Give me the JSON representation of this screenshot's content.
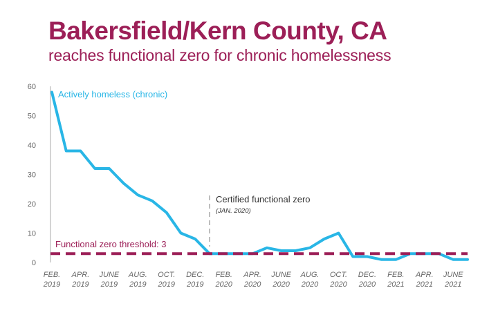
{
  "colors": {
    "accent": "#9c1f57",
    "series": "#29b6e6",
    "threshold": "#9c1f57",
    "axis": "#aaaaaa",
    "tick_text": "#666666",
    "annotation_line": "#aaaaaa"
  },
  "chart_data": {
    "type": "line",
    "title": "Bakersfield/Kern County, CA",
    "subtitle": "reaches functional zero for chronic homelessness",
    "ylim": [
      0,
      60
    ],
    "yticks": [
      0,
      10,
      20,
      30,
      40,
      50,
      60
    ],
    "x_labels": [
      {
        "month": "FEB.",
        "year": "2019"
      },
      {
        "month": "APR.",
        "year": "2019"
      },
      {
        "month": "JUNE",
        "year": "2019"
      },
      {
        "month": "AUG.",
        "year": "2019"
      },
      {
        "month": "OCT.",
        "year": "2019"
      },
      {
        "month": "DEC.",
        "year": "2019"
      },
      {
        "month": "FEB.",
        "year": "2020"
      },
      {
        "month": "APR.",
        "year": "2020"
      },
      {
        "month": "JUNE",
        "year": "2020"
      },
      {
        "month": "AUG.",
        "year": "2020"
      },
      {
        "month": "OCT.",
        "year": "2020"
      },
      {
        "month": "DEC.",
        "year": "2020"
      },
      {
        "month": "FEB.",
        "year": "2021"
      },
      {
        "month": "APR.",
        "year": "2021"
      },
      {
        "month": "JUNE",
        "year": "2021"
      }
    ],
    "series": [
      {
        "name": "Actively homeless (chronic)",
        "x": [
          "2019-02",
          "2019-03",
          "2019-04",
          "2019-05",
          "2019-06",
          "2019-07",
          "2019-08",
          "2019-09",
          "2019-10",
          "2019-11",
          "2019-12",
          "2020-01",
          "2020-02",
          "2020-03",
          "2020-04",
          "2020-05",
          "2020-06",
          "2020-07",
          "2020-08",
          "2020-09",
          "2020-10",
          "2020-11",
          "2020-12",
          "2021-01",
          "2021-02",
          "2021-03",
          "2021-04",
          "2021-05",
          "2021-06",
          "2021-07"
        ],
        "values": [
          58,
          38,
          38,
          32,
          32,
          27,
          23,
          21,
          17,
          10,
          8,
          3,
          3,
          3,
          3,
          5,
          4,
          4,
          5,
          8,
          10,
          2,
          2,
          1,
          1,
          3,
          3,
          3,
          1,
          1
        ]
      }
    ],
    "threshold": {
      "label": "Functional zero threshold: 3",
      "value": 3
    },
    "annotation": {
      "x": "2020-01",
      "label": "Certified functional zero",
      "sublabel": "(JAN. 2020)"
    }
  }
}
